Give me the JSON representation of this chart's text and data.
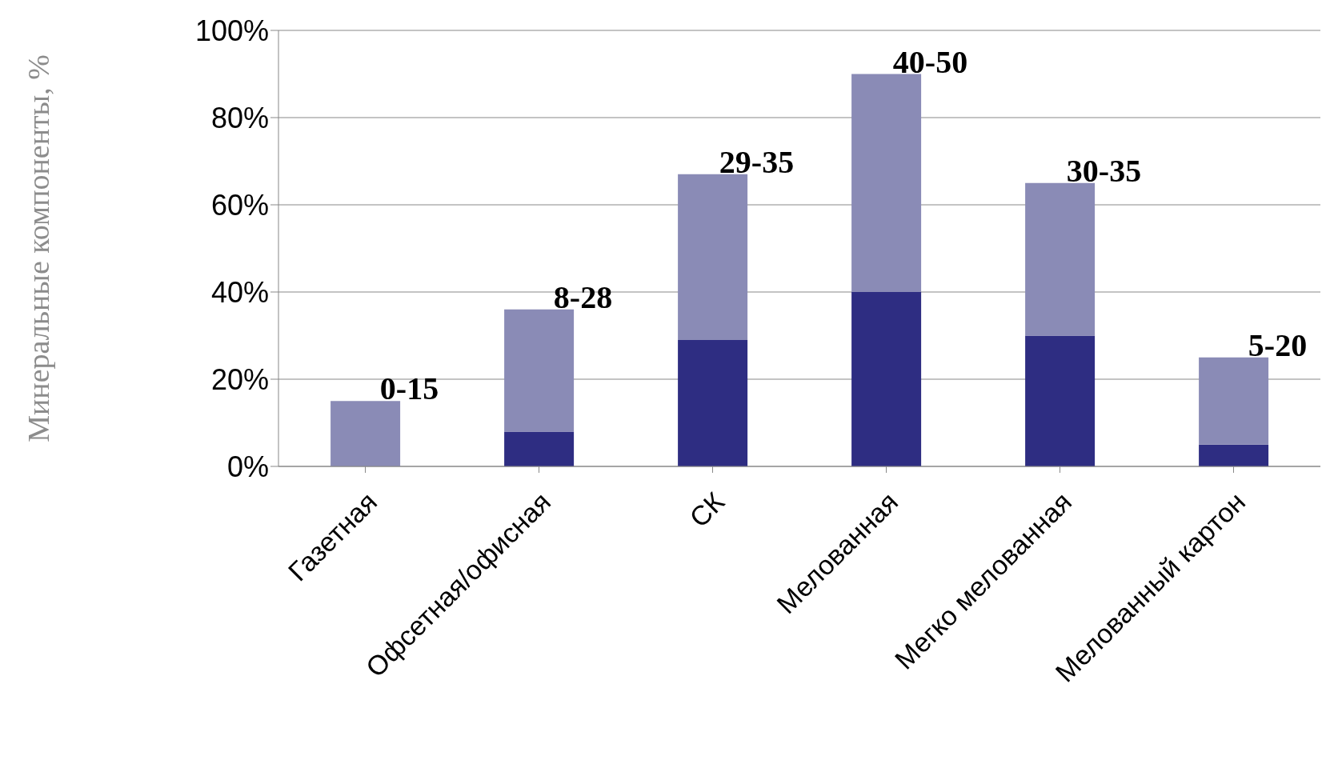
{
  "chart_data": {
    "type": "bar",
    "stacked": true,
    "ylabel": "Минеральные компоненты, %",
    "categories": [
      "Газетная",
      "Офсетная/офисная",
      "СК",
      "Мелованная",
      "Мегко мелованная",
      "Мелованный картон"
    ],
    "series": [
      {
        "color": "#2e2d82",
        "values": [
          0,
          8,
          29,
          40,
          30,
          5
        ]
      },
      {
        "color": "#8a8bb6",
        "values": [
          15,
          28,
          38,
          50,
          35,
          20
        ]
      }
    ],
    "ylim": [
      0,
      100
    ],
    "yticks": [
      {
        "value": 0,
        "label": "0%"
      },
      {
        "value": 20,
        "label": "20%"
      },
      {
        "value": 40,
        "label": "40%"
      },
      {
        "value": 60,
        "label": "60%"
      },
      {
        "value": 80,
        "label": "80%"
      },
      {
        "value": 100,
        "label": "100%"
      }
    ],
    "grid": "y",
    "annotations": [
      {
        "text": "0-15",
        "x": "Газетная",
        "y": 15
      },
      {
        "text": "8-28",
        "x": "Офсетная/офисная",
        "y": 36
      },
      {
        "text": "29-35",
        "x": "СК",
        "y": 67
      },
      {
        "text": "40-50",
        "x": "Мелованная",
        "y": 90
      },
      {
        "text": "30-35",
        "x": "Мегко мелованная",
        "y": 65
      },
      {
        "text": "5-20",
        "x": "Мелованный картон",
        "y": 25
      }
    ]
  }
}
